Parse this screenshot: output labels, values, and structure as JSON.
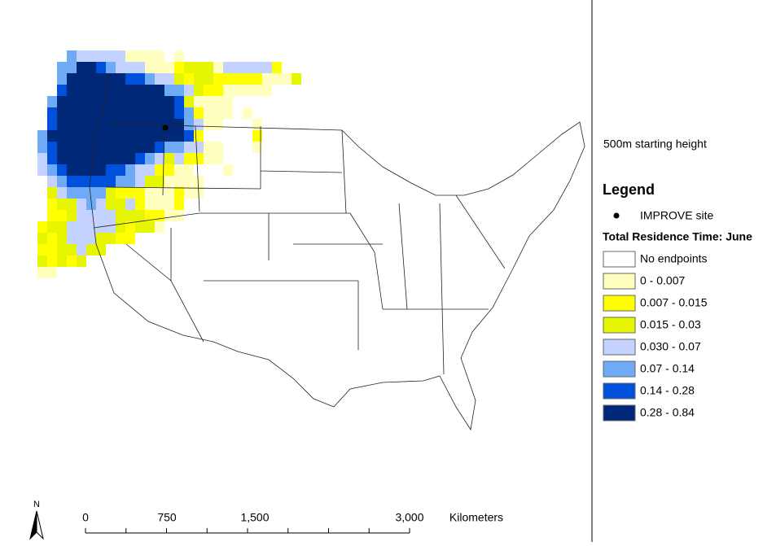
{
  "map": {
    "subtitle": "500m starting height",
    "legend": {
      "title": "Legend",
      "site_label": "IMPROVE site",
      "heading": "Total Residence Time: June",
      "items": [
        {
          "label": "No endpoints",
          "color": "#ffffff"
        },
        {
          "label": "0 - 0.007",
          "color": "#ffffc0"
        },
        {
          "label": "0.007 - 0.015",
          "color": "#ffff00"
        },
        {
          "label": "0.015 - 0.03",
          "color": "#e6f500"
        },
        {
          "label": "0.030 - 0.07",
          "color": "#c4d2ff"
        },
        {
          "label": "0.07 - 0.14",
          "color": "#6eaaf5"
        },
        {
          "label": "0.14 - 0.28",
          "color": "#0050dc"
        },
        {
          "label": "0.28 - 0.84",
          "color": "#002878"
        }
      ]
    },
    "north": "N",
    "scale": {
      "labels": [
        "0",
        "750",
        "1,500",
        "3,000"
      ],
      "unit": "Kilometers"
    }
  }
}
